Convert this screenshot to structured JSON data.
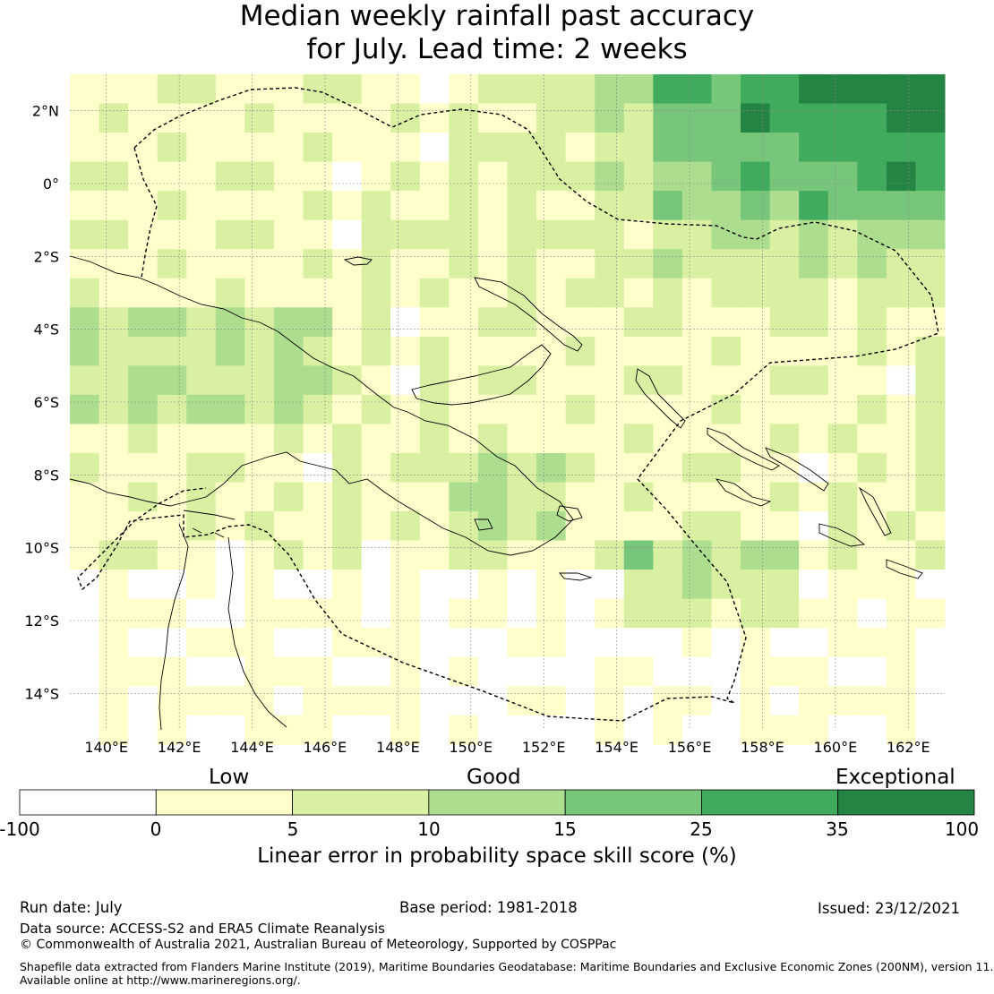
{
  "title": {
    "line1": "Median weekly rainfall past accuracy",
    "line2": "for July. Lead time: 2 weeks"
  },
  "map": {
    "lon_range": [
      139,
      163
    ],
    "lat_range": [
      -15,
      3
    ],
    "lon_ticks": [
      "140°E",
      "142°E",
      "144°E",
      "146°E",
      "148°E",
      "150°E",
      "152°E",
      "154°E",
      "156°E",
      "158°E",
      "160°E",
      "162°E"
    ],
    "lon_tick_values": [
      140,
      142,
      144,
      146,
      148,
      150,
      152,
      154,
      156,
      158,
      160,
      162
    ],
    "lat_ticks": [
      "2°N",
      "0°",
      "2°S",
      "4°S",
      "6°S",
      "8°S",
      "10°S",
      "12°S",
      "14°S"
    ],
    "lat_tick_values": [
      2,
      0,
      -2,
      -4,
      -6,
      -8,
      -10,
      -12,
      -14
    ],
    "category_colors": [
      "#ffffff",
      "#ffffcc",
      "#d9f0a3",
      "#addd8e",
      "#78c679",
      "#41ab5d",
      "#238443"
    ]
  },
  "colorbar": {
    "categories": {
      "low": "Low",
      "good": "Good",
      "exceptional": "Exceptional"
    },
    "ticks": [
      "-100",
      "0",
      "5",
      "10",
      "15",
      "25",
      "35",
      "100"
    ],
    "label": "Linear error in probability space skill score (%)"
  },
  "footer": {
    "run_date": "Run date: July",
    "base_period": "Base period: 1981-2018",
    "issued": "Issued: 23/12/2021",
    "data_source": "Data source: ACCESS-S2 and ERA5 Climate Reanalysis",
    "copyright": "© Commonwealth of Australia 2021, Australian Bureau of Meteorology, Supported by COSPPac",
    "shapefile_line1": "Shapefile data extracted from Flanders Marine Institute (2019), Maritime Boundaries Geodatabase: Maritime Boundaries and Exclusive Economic Zones (200NM), version 11.",
    "shapefile_line2": "Available online at http://www.marineregions.org/."
  }
}
